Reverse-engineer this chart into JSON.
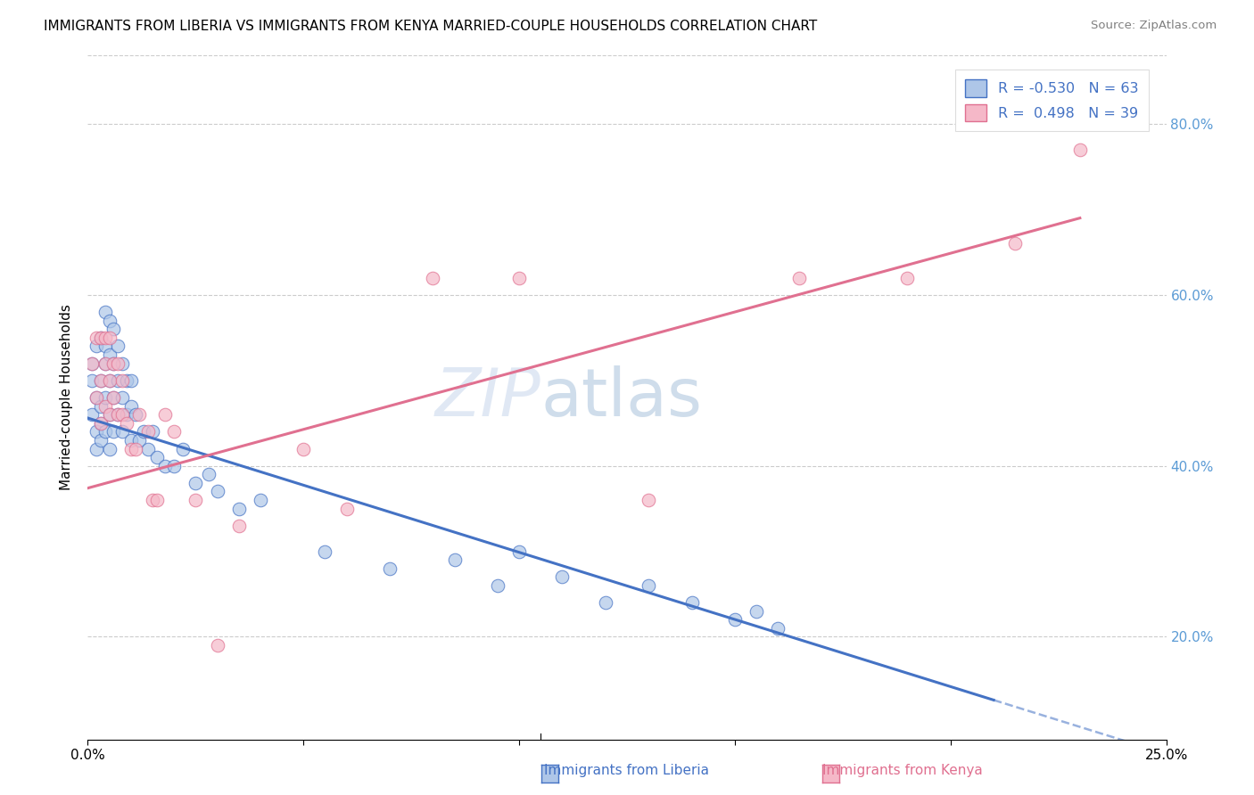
{
  "title": "IMMIGRANTS FROM LIBERIA VS IMMIGRANTS FROM KENYA MARRIED-COUPLE HOUSEHOLDS CORRELATION CHART",
  "source": "Source: ZipAtlas.com",
  "ylabel_label": "Married-couple Households",
  "xlim": [
    0.0,
    0.25
  ],
  "ylim": [
    0.08,
    0.88
  ],
  "ytick_vals": [
    0.2,
    0.4,
    0.6,
    0.8
  ],
  "ytick_labels": [
    "20.0%",
    "40.0%",
    "60.0%",
    "80.0%"
  ],
  "xtick_vals": [
    0.0,
    0.05,
    0.1,
    0.15,
    0.2,
    0.25
  ],
  "xtick_labels": [
    "0.0%",
    "",
    "",
    "",
    "",
    "25.0%"
  ],
  "legend_liberia_R": -0.53,
  "legend_liberia_N": 63,
  "legend_kenya_R": 0.498,
  "legend_kenya_N": 39,
  "color_liberia_fill": "#aec6e8",
  "color_liberia_edge": "#4472c4",
  "color_kenya_fill": "#f5b8c8",
  "color_kenya_edge": "#e07090",
  "color_liberia_line": "#4472c4",
  "color_kenya_line": "#e07090",
  "liberia_x": [
    0.001,
    0.001,
    0.001,
    0.002,
    0.002,
    0.002,
    0.002,
    0.003,
    0.003,
    0.003,
    0.003,
    0.003,
    0.004,
    0.004,
    0.004,
    0.004,
    0.004,
    0.005,
    0.005,
    0.005,
    0.005,
    0.005,
    0.006,
    0.006,
    0.006,
    0.006,
    0.007,
    0.007,
    0.007,
    0.008,
    0.008,
    0.008,
    0.009,
    0.009,
    0.01,
    0.01,
    0.01,
    0.011,
    0.012,
    0.013,
    0.014,
    0.015,
    0.016,
    0.018,
    0.02,
    0.022,
    0.025,
    0.028,
    0.03,
    0.035,
    0.04,
    0.055,
    0.07,
    0.085,
    0.095,
    0.1,
    0.11,
    0.12,
    0.13,
    0.14,
    0.15,
    0.155,
    0.16
  ],
  "liberia_y": [
    0.5,
    0.46,
    0.52,
    0.54,
    0.48,
    0.44,
    0.42,
    0.55,
    0.5,
    0.47,
    0.45,
    0.43,
    0.58,
    0.54,
    0.52,
    0.48,
    0.44,
    0.57,
    0.53,
    0.5,
    0.46,
    0.42,
    0.56,
    0.52,
    0.48,
    0.44,
    0.54,
    0.5,
    0.46,
    0.52,
    0.48,
    0.44,
    0.5,
    0.46,
    0.5,
    0.47,
    0.43,
    0.46,
    0.43,
    0.44,
    0.42,
    0.44,
    0.41,
    0.4,
    0.4,
    0.42,
    0.38,
    0.39,
    0.37,
    0.35,
    0.36,
    0.3,
    0.28,
    0.29,
    0.26,
    0.3,
    0.27,
    0.24,
    0.26,
    0.24,
    0.22,
    0.23,
    0.21
  ],
  "kenya_x": [
    0.001,
    0.002,
    0.002,
    0.003,
    0.003,
    0.003,
    0.004,
    0.004,
    0.004,
    0.005,
    0.005,
    0.005,
    0.006,
    0.006,
    0.007,
    0.007,
    0.008,
    0.008,
    0.009,
    0.01,
    0.011,
    0.012,
    0.014,
    0.015,
    0.016,
    0.018,
    0.02,
    0.025,
    0.03,
    0.035,
    0.05,
    0.06,
    0.08,
    0.1,
    0.13,
    0.165,
    0.19,
    0.215,
    0.23
  ],
  "kenya_y": [
    0.52,
    0.55,
    0.48,
    0.55,
    0.5,
    0.45,
    0.55,
    0.52,
    0.47,
    0.55,
    0.5,
    0.46,
    0.52,
    0.48,
    0.52,
    0.46,
    0.5,
    0.46,
    0.45,
    0.42,
    0.42,
    0.46,
    0.44,
    0.36,
    0.36,
    0.46,
    0.44,
    0.36,
    0.19,
    0.33,
    0.42,
    0.35,
    0.62,
    0.62,
    0.36,
    0.62,
    0.62,
    0.66,
    0.77
  ],
  "line_liberia_x0": 0.0,
  "line_liberia_y0": 0.456,
  "line_liberia_x1": 0.21,
  "line_liberia_y1": 0.126,
  "line_liberia_dash_x1": 0.25,
  "line_kenya_x0": 0.0,
  "line_kenya_y0": 0.374,
  "line_kenya_x1": 0.23,
  "line_kenya_y1": 0.69
}
